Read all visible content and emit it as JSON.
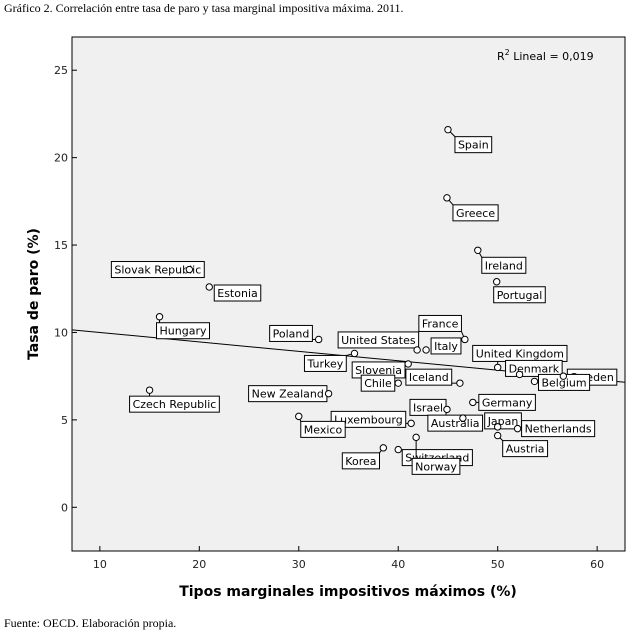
{
  "title": "Gráfico 2. Correlación entre tasa de paro y tasa marginal impositiva máxima. 2011.",
  "source": "Fuente: OECD. Elaboración propia.",
  "chart_data": {
    "type": "scatter",
    "xlabel": "Tipos marginales impositivos máximos (%)",
    "ylabel": "Tasa de paro (%)",
    "xlim": [
      7.2,
      62.8
    ],
    "ylim": [
      -2.5,
      26.9
    ],
    "xticks": [
      10,
      20,
      30,
      40,
      50,
      60
    ],
    "yticks": [
      0,
      5,
      10,
      15,
      20,
      25
    ],
    "grid": false,
    "legend": "none",
    "annotation": {
      "prefix": "R",
      "superscript": "2",
      "text": " Lineal = 0,019"
    },
    "fit_line": {
      "x": [
        7.2,
        62.8
      ],
      "y": [
        10.15,
        7.15
      ]
    },
    "points": [
      {
        "label": "Spain",
        "x": 45.0,
        "y": 21.6
      },
      {
        "label": "Greece",
        "x": 44.9,
        "y": 17.7
      },
      {
        "label": "Ireland",
        "x": 48.0,
        "y": 14.7
      },
      {
        "label": "Portugal",
        "x": 49.9,
        "y": 12.9
      },
      {
        "label": "Slovak Republic",
        "x": 19.0,
        "y": 13.6
      },
      {
        "label": "Estonia",
        "x": 21.0,
        "y": 12.6
      },
      {
        "label": "Hungary",
        "x": 16.0,
        "y": 10.9
      },
      {
        "label": "Poland",
        "x": 32.0,
        "y": 9.6
      },
      {
        "label": "France",
        "x": 46.7,
        "y": 9.6
      },
      {
        "label": "United States",
        "x": 41.9,
        "y": 9.0
      },
      {
        "label": "Italy",
        "x": 42.8,
        "y": 9.0
      },
      {
        "label": "Turkey",
        "x": 35.6,
        "y": 8.8
      },
      {
        "label": "Slovenia",
        "x": 41.0,
        "y": 8.2
      },
      {
        "label": "United Kingdom",
        "x": 50.0,
        "y": 8.0
      },
      {
        "label": "Denmark",
        "x": 52.2,
        "y": 7.6
      },
      {
        "label": "Sweden",
        "x": 56.6,
        "y": 7.5
      },
      {
        "label": "Belgium",
        "x": 53.7,
        "y": 7.2
      },
      {
        "label": "Czech Republic",
        "x": 15.0,
        "y": 6.7
      },
      {
        "label": "New Zealand",
        "x": 33.0,
        "y": 6.5
      },
      {
        "label": "Chile",
        "x": 40.0,
        "y": 7.1
      },
      {
        "label": "Iceland",
        "x": 46.2,
        "y": 7.1
      },
      {
        "label": "Germany",
        "x": 47.5,
        "y": 6.0
      },
      {
        "label": "Israel",
        "x": 44.9,
        "y": 5.6
      },
      {
        "label": "Luxembourg",
        "x": 41.3,
        "y": 4.8
      },
      {
        "label": "Japan",
        "x": 50.0,
        "y": 4.6
      },
      {
        "label": "Australia",
        "x": 46.5,
        "y": 5.1
      },
      {
        "label": "Netherlands",
        "x": 52.0,
        "y": 4.5
      },
      {
        "label": "Austria",
        "x": 50.0,
        "y": 4.1
      },
      {
        "label": "Mexico",
        "x": 30.0,
        "y": 5.2
      },
      {
        "label": "Korea",
        "x": 38.5,
        "y": 3.4
      },
      {
        "label": "Switzerland",
        "x": 40.0,
        "y": 3.3
      },
      {
        "label": "Norway",
        "x": 41.8,
        "y": 4.0
      }
    ]
  }
}
